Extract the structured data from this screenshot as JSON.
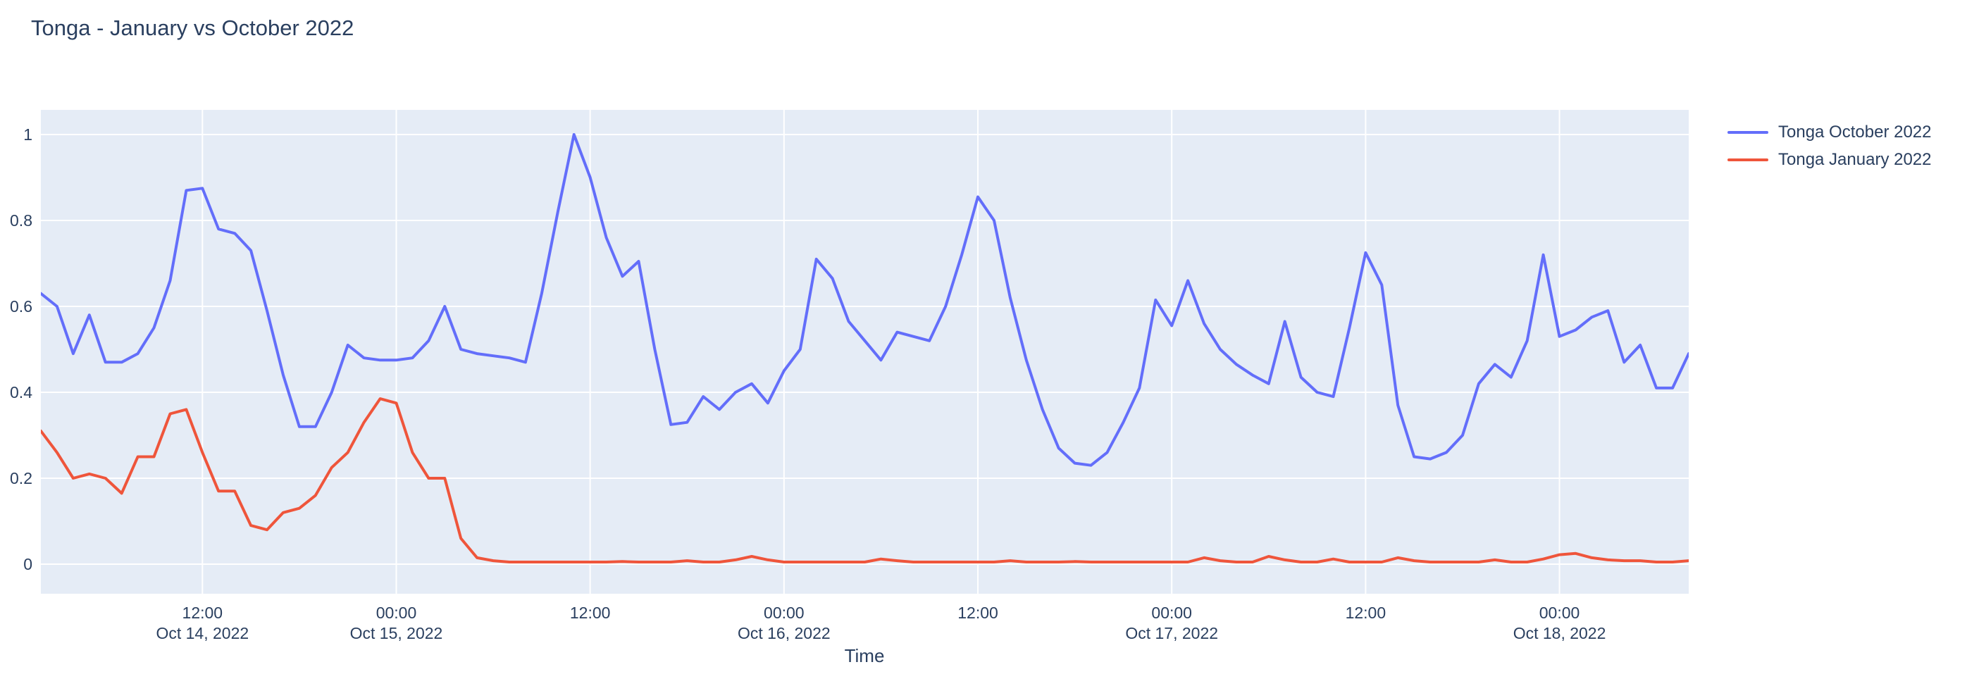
{
  "title": "Tonga - January vs October 2022",
  "axes": {
    "x_title": "Time",
    "x_ticks": [
      {
        "time": "12:00",
        "date": "Oct 14, 2022",
        "hour_index": 10
      },
      {
        "time": "00:00",
        "date": "Oct 15, 2022",
        "hour_index": 22
      },
      {
        "time": "12:00",
        "date": "",
        "hour_index": 34
      },
      {
        "time": "00:00",
        "date": "Oct 16, 2022",
        "hour_index": 46
      },
      {
        "time": "12:00",
        "date": "",
        "hour_index": 58
      },
      {
        "time": "00:00",
        "date": "Oct 17, 2022",
        "hour_index": 70
      },
      {
        "time": "12:00",
        "date": "",
        "hour_index": 82
      },
      {
        "time": "00:00",
        "date": "Oct 18, 2022",
        "hour_index": 94
      }
    ],
    "y_ticks": [
      {
        "label": "0",
        "value": 0
      },
      {
        "label": "0.2",
        "value": 0.2
      },
      {
        "label": "0.4",
        "value": 0.4
      },
      {
        "label": "0.6",
        "value": 0.6
      },
      {
        "label": "0.8",
        "value": 0.8
      },
      {
        "label": "1",
        "value": 1
      }
    ]
  },
  "legend": [
    {
      "label": "Tonga October 2022",
      "color": "#636efa"
    },
    {
      "label": "Tonga January 2022",
      "color": "#ef553b"
    }
  ],
  "colors": {
    "plot_background": "#e5ecf6",
    "gridline": "#ffffff",
    "text": "#2a3f5f",
    "october_series": "#636efa",
    "january_series": "#ef553b"
  },
  "chart_data": {
    "type": "line",
    "title": "Tonga - January vs October 2022",
    "xlabel": "Time",
    "ylabel": "",
    "x_start": "2022-10-14 02:00",
    "x_end": "2022-10-18 08:00",
    "x_interval_hours": 1,
    "x_axis_tick_times": [
      "Oct 14 12:00",
      "Oct 15 00:00",
      "Oct 15 12:00",
      "Oct 16 00:00",
      "Oct 16 12:00",
      "Oct 17 00:00",
      "Oct 17 12:00",
      "Oct 18 00:00"
    ],
    "ylim_data": [
      0,
      1
    ],
    "ylim_axis": [
      -0.069,
      1.056
    ],
    "grid": true,
    "legend_position": "top-right",
    "series": [
      {
        "name": "Tonga October 2022",
        "color": "#636efa",
        "values": [
          0.63,
          0.6,
          0.49,
          0.58,
          0.47,
          0.47,
          0.49,
          0.55,
          0.66,
          0.87,
          0.875,
          0.78,
          0.77,
          0.73,
          0.59,
          0.44,
          0.32,
          0.32,
          0.4,
          0.51,
          0.48,
          0.475,
          0.475,
          0.48,
          0.52,
          0.6,
          0.5,
          0.49,
          0.485,
          0.48,
          0.47,
          0.63,
          0.82,
          1.0,
          0.9,
          0.76,
          0.67,
          0.705,
          0.5,
          0.325,
          0.33,
          0.39,
          0.36,
          0.4,
          0.42,
          0.375,
          0.45,
          0.5,
          0.71,
          0.665,
          0.565,
          0.52,
          0.475,
          0.54,
          0.53,
          0.52,
          0.6,
          0.72,
          0.855,
          0.8,
          0.62,
          0.475,
          0.36,
          0.27,
          0.235,
          0.23,
          0.26,
          0.33,
          0.41,
          0.615,
          0.555,
          0.66,
          0.56,
          0.5,
          0.465,
          0.44,
          0.42,
          0.565,
          0.435,
          0.4,
          0.39,
          0.55,
          0.725,
          0.65,
          0.37,
          0.25,
          0.245,
          0.26,
          0.3,
          0.42,
          0.465,
          0.435,
          0.52,
          0.72,
          0.53,
          0.545,
          0.575,
          0.59,
          0.47,
          0.51,
          0.41,
          0.41,
          0.49
        ]
      },
      {
        "name": "Tonga January 2022",
        "color": "#ef553b",
        "values": [
          0.31,
          0.26,
          0.2,
          0.21,
          0.2,
          0.165,
          0.25,
          0.25,
          0.35,
          0.36,
          0.26,
          0.17,
          0.17,
          0.09,
          0.08,
          0.12,
          0.13,
          0.16,
          0.225,
          0.26,
          0.33,
          0.385,
          0.375,
          0.26,
          0.2,
          0.2,
          0.06,
          0.015,
          0.008,
          0.005,
          0.005,
          0.005,
          0.005,
          0.005,
          0.005,
          0.005,
          0.006,
          0.005,
          0.005,
          0.005,
          0.008,
          0.005,
          0.005,
          0.01,
          0.018,
          0.01,
          0.005,
          0.005,
          0.005,
          0.005,
          0.005,
          0.005,
          0.012,
          0.008,
          0.005,
          0.005,
          0.005,
          0.005,
          0.005,
          0.005,
          0.008,
          0.005,
          0.005,
          0.005,
          0.006,
          0.005,
          0.005,
          0.005,
          0.005,
          0.005,
          0.005,
          0.005,
          0.015,
          0.008,
          0.005,
          0.005,
          0.018,
          0.01,
          0.005,
          0.005,
          0.012,
          0.005,
          0.005,
          0.005,
          0.015,
          0.008,
          0.005,
          0.005,
          0.005,
          0.005,
          0.01,
          0.005,
          0.005,
          0.012,
          0.022,
          0.025,
          0.015,
          0.01,
          0.008,
          0.008,
          0.005,
          0.005,
          0.008
        ]
      }
    ]
  }
}
